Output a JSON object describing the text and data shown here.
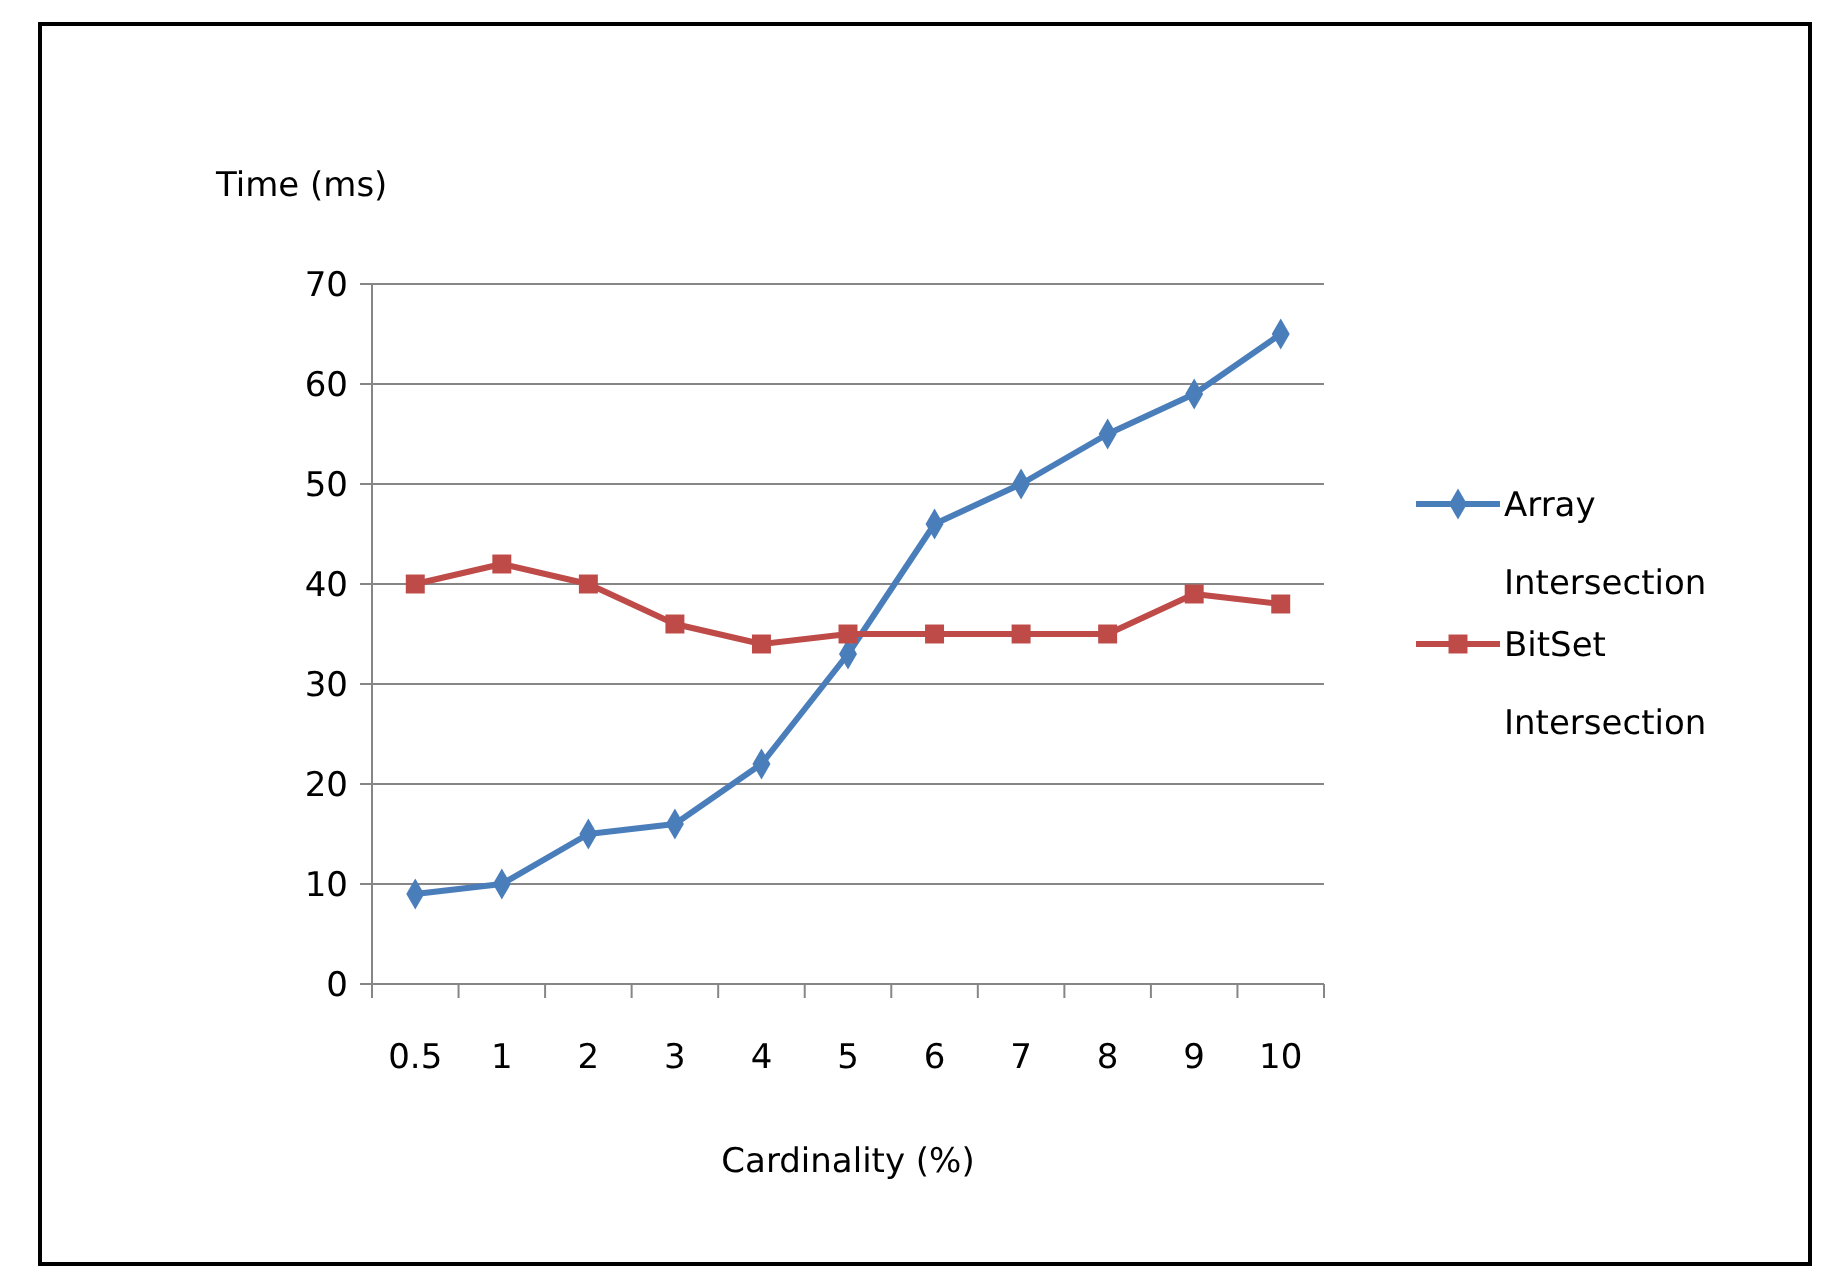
{
  "chart_data": {
    "type": "line",
    "ylabel": "Time (ms)",
    "xlabel": "Cardinality (%)",
    "categories": [
      "0.5",
      "1",
      "2",
      "3",
      "4",
      "5",
      "6",
      "7",
      "8",
      "9",
      "10"
    ],
    "series": [
      {
        "name": "Array Intersection",
        "color": "#4a7ebb",
        "marker": "diamond",
        "values": [
          9,
          10,
          15,
          16,
          22,
          33,
          46,
          50,
          55,
          59,
          65
        ]
      },
      {
        "name": "BitSet Intersection",
        "color": "#be4b48",
        "marker": "square",
        "values": [
          40,
          42,
          40,
          36,
          34,
          35,
          35,
          35,
          35,
          39,
          38
        ]
      }
    ],
    "ylim": [
      0,
      70
    ],
    "yticks": [
      0,
      10,
      20,
      30,
      40,
      50,
      60,
      70
    ],
    "grid": "y",
    "legend": "right",
    "line_style": "solid"
  }
}
